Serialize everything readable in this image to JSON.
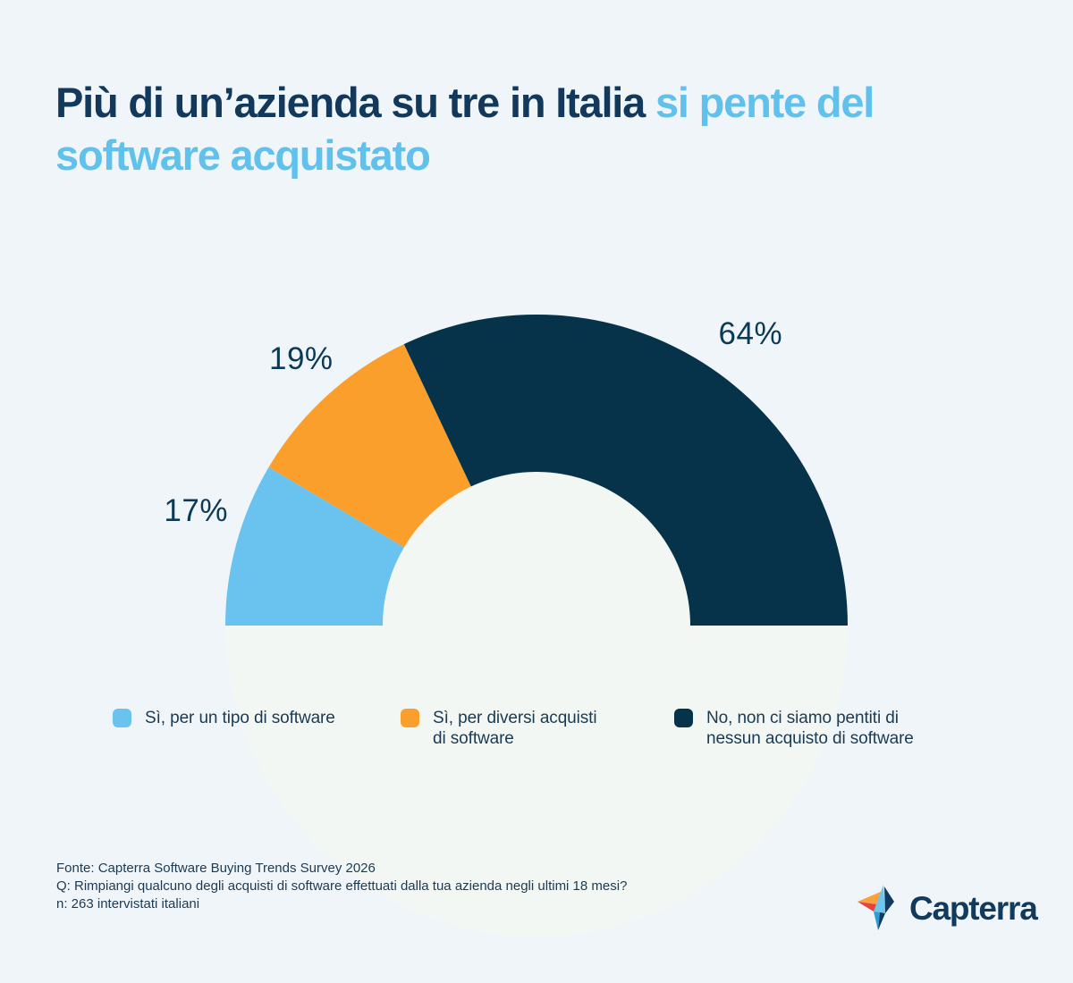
{
  "theme": {
    "background": "#F0F5FA",
    "halo": "#F2F7F4",
    "title_primary": "#12395B",
    "title_accent": "#5FC1EC",
    "text": "#1B3A52",
    "label": "#0B3A55",
    "logo_navy": "#123A5C",
    "logo_orange": "#F9A13C",
    "logo_red": "#E2453D",
    "logo_sky": "#6EC5F0",
    "logo_blue": "#2E9BD6"
  },
  "title": {
    "line1_primary": "Più di un’azienda su tre in Italia ",
    "line1_accent": "si pente del",
    "line2_accent": "software acquistato"
  },
  "chart_data": {
    "type": "pie",
    "variant": "half-donut",
    "unit": "%",
    "start_angle_deg": 180,
    "end_angle_deg": 0,
    "title": "Più di un’azienda su tre in Italia si pente del software acquistato",
    "legend_position": "bottom",
    "segments": [
      {
        "label": "Sì, per un tipo di software",
        "value": 17,
        "color": "#69C3EE"
      },
      {
        "label": "Sì, per diversi acquisti di software",
        "value": 19,
        "color": "#FB9F2C"
      },
      {
        "label": "No, non ci siamo pentiti di nessun acquisto di software",
        "value": 64,
        "color": "#06334A"
      }
    ]
  },
  "legend": {
    "items": [
      {
        "label_lines": [
          "Sì, per un tipo di software"
        ],
        "color": "#69C3EE"
      },
      {
        "label_lines": [
          "Sì, per diversi acquisti",
          "di software"
        ],
        "color": "#FB9F2C"
      },
      {
        "label_lines": [
          "No, non ci siamo pentiti di",
          "nessun acquisto di software"
        ],
        "color": "#06334A"
      }
    ]
  },
  "footer": {
    "lines": [
      "Fonte: Capterra Software Buying Trends Survey 2026",
      "Q: Rimpiangi qualcuno degli acquisti di software effettuati dalla tua azienda negli ultimi 18 mesi?",
      "n: 263 intervistati italiani"
    ]
  },
  "logo": {
    "text": "Capterra"
  }
}
